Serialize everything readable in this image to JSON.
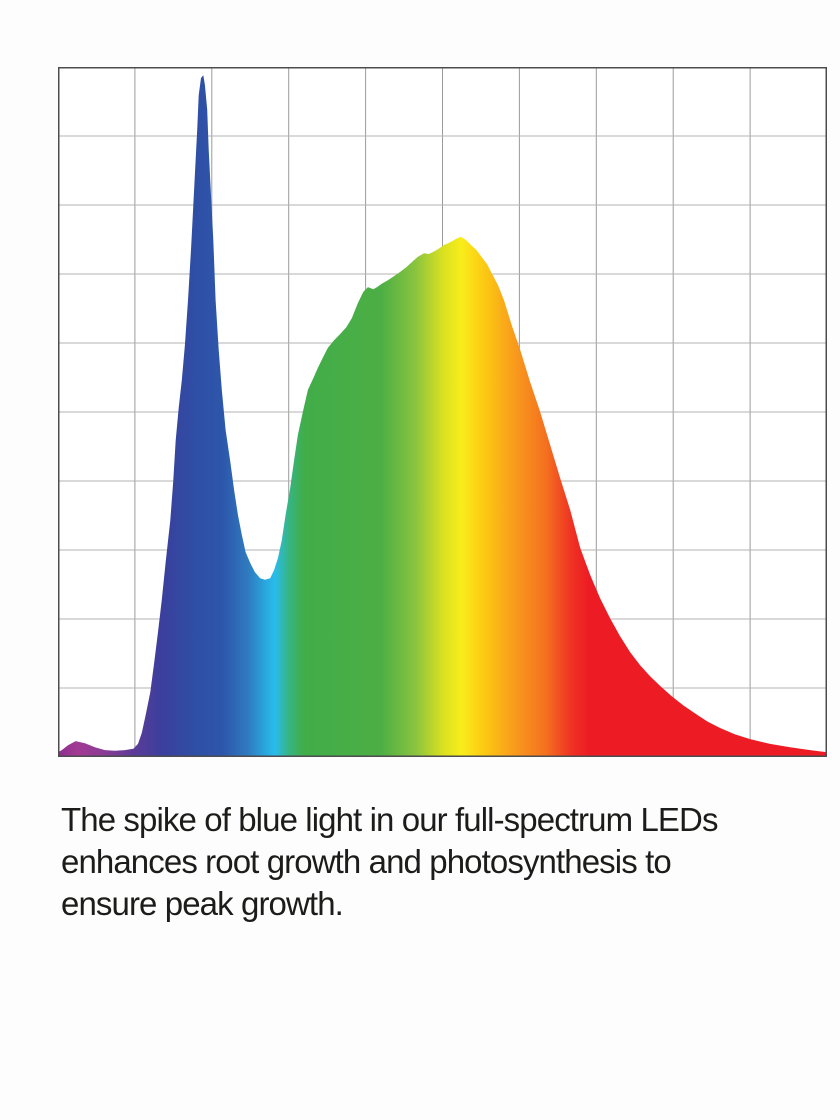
{
  "page": {
    "background": "#fdfdfd"
  },
  "caption": {
    "text": "The spike of blue light in our full-spectrum LEDs enhances root growth and photosynthesis to ensure peak growth.",
    "lines": [
      "The spike of blue light in our full-spectrum LEDs",
      "enhances root growth and photosynthesis to",
      "ensure peak growth."
    ],
    "color": "#1c1c1a"
  },
  "chart_data": {
    "type": "area",
    "title": "",
    "xlabel": "",
    "ylabel": "",
    "axes_labeled": false,
    "description": "Spectral power distribution of a full-spectrum grow LED: sharp royal-blue spike (~450 nm) reaching nearly full scale, valley in cyan, broad hump across green-yellow peaking in yellow (~75% of full scale), long red tail. Fill is a horizontal rainbow gradient from violet to red.",
    "grid": {
      "columns": 10,
      "rows": 10,
      "line_color_vertical": "#9b9b9b",
      "line_color_horizontal": "#b3b3b3",
      "border_color": "#4d4d4f",
      "plot_background": "#ffffff"
    },
    "peaks": [
      {
        "name": "blue-spike",
        "x_frac": 0.189,
        "intensity_frac": 0.988
      },
      {
        "name": "yellow-peak",
        "x_frac": 0.524,
        "intensity_frac": 0.754
      },
      {
        "name": "valley",
        "x_frac": 0.269,
        "intensity_frac": 0.257
      }
    ],
    "gradient_stops": [
      {
        "offset": 0.0,
        "color": "#8c2f8e"
      },
      {
        "offset": 0.025,
        "color": "#a23a93"
      },
      {
        "offset": 0.06,
        "color": "#8a3c95"
      },
      {
        "offset": 0.095,
        "color": "#5f3b97"
      },
      {
        "offset": 0.135,
        "color": "#3a3f9d"
      },
      {
        "offset": 0.18,
        "color": "#2e4fa5"
      },
      {
        "offset": 0.215,
        "color": "#2d57ab"
      },
      {
        "offset": 0.248,
        "color": "#2f7cc0"
      },
      {
        "offset": 0.27,
        "color": "#29a8de"
      },
      {
        "offset": 0.282,
        "color": "#29bcec"
      },
      {
        "offset": 0.3,
        "color": "#36b583"
      },
      {
        "offset": 0.32,
        "color": "#41ad49"
      },
      {
        "offset": 0.42,
        "color": "#4cae44"
      },
      {
        "offset": 0.465,
        "color": "#8ac43f"
      },
      {
        "offset": 0.5,
        "color": "#d9e021"
      },
      {
        "offset": 0.525,
        "color": "#f9ed1b"
      },
      {
        "offset": 0.555,
        "color": "#fcc813"
      },
      {
        "offset": 0.6,
        "color": "#f8941d"
      },
      {
        "offset": 0.635,
        "color": "#f4701f"
      },
      {
        "offset": 0.668,
        "color": "#ef3123"
      },
      {
        "offset": 0.69,
        "color": "#ed1c24"
      },
      {
        "offset": 1.0,
        "color": "#ed1c24"
      }
    ],
    "area_points": [
      [
        0.0,
        0.007
      ],
      [
        0.005,
        0.01
      ],
      [
        0.013,
        0.017
      ],
      [
        0.023,
        0.023
      ],
      [
        0.035,
        0.02
      ],
      [
        0.048,
        0.014
      ],
      [
        0.061,
        0.01
      ],
      [
        0.074,
        0.009
      ],
      [
        0.087,
        0.01
      ],
      [
        0.098,
        0.012
      ],
      [
        0.104,
        0.019
      ],
      [
        0.109,
        0.035
      ],
      [
        0.114,
        0.061
      ],
      [
        0.12,
        0.094
      ],
      [
        0.125,
        0.136
      ],
      [
        0.13,
        0.181
      ],
      [
        0.135,
        0.228
      ],
      [
        0.14,
        0.283
      ],
      [
        0.146,
        0.343
      ],
      [
        0.15,
        0.401
      ],
      [
        0.153,
        0.459
      ],
      [
        0.157,
        0.506
      ],
      [
        0.161,
        0.546
      ],
      [
        0.165,
        0.597
      ],
      [
        0.169,
        0.662
      ],
      [
        0.173,
        0.735
      ],
      [
        0.177,
        0.822
      ],
      [
        0.181,
        0.909
      ],
      [
        0.183,
        0.959
      ],
      [
        0.186,
        0.984
      ],
      [
        0.189,
        0.988
      ],
      [
        0.191,
        0.974
      ],
      [
        0.194,
        0.938
      ],
      [
        0.196,
        0.88
      ],
      [
        0.199,
        0.814
      ],
      [
        0.202,
        0.749
      ],
      [
        0.205,
        0.662
      ],
      [
        0.209,
        0.59
      ],
      [
        0.213,
        0.532
      ],
      [
        0.218,
        0.474
      ],
      [
        0.224,
        0.428
      ],
      [
        0.229,
        0.387
      ],
      [
        0.234,
        0.351
      ],
      [
        0.239,
        0.322
      ],
      [
        0.244,
        0.297
      ],
      [
        0.25,
        0.281
      ],
      [
        0.256,
        0.268
      ],
      [
        0.263,
        0.259
      ],
      [
        0.269,
        0.257
      ],
      [
        0.276,
        0.259
      ],
      [
        0.281,
        0.271
      ],
      [
        0.286,
        0.288
      ],
      [
        0.291,
        0.314
      ],
      [
        0.296,
        0.351
      ],
      [
        0.302,
        0.39
      ],
      [
        0.307,
        0.43
      ],
      [
        0.312,
        0.467
      ],
      [
        0.319,
        0.503
      ],
      [
        0.325,
        0.532
      ],
      [
        0.332,
        0.549
      ],
      [
        0.338,
        0.564
      ],
      [
        0.345,
        0.58
      ],
      [
        0.351,
        0.593
      ],
      [
        0.359,
        0.604
      ],
      [
        0.367,
        0.613
      ],
      [
        0.375,
        0.623
      ],
      [
        0.382,
        0.636
      ],
      [
        0.39,
        0.658
      ],
      [
        0.397,
        0.674
      ],
      [
        0.403,
        0.681
      ],
      [
        0.41,
        0.678
      ],
      [
        0.415,
        0.681
      ],
      [
        0.421,
        0.686
      ],
      [
        0.429,
        0.691
      ],
      [
        0.437,
        0.697
      ],
      [
        0.445,
        0.703
      ],
      [
        0.453,
        0.71
      ],
      [
        0.46,
        0.717
      ],
      [
        0.468,
        0.725
      ],
      [
        0.476,
        0.73
      ],
      [
        0.482,
        0.729
      ],
      [
        0.488,
        0.732
      ],
      [
        0.494,
        0.736
      ],
      [
        0.502,
        0.742
      ],
      [
        0.51,
        0.746
      ],
      [
        0.518,
        0.751
      ],
      [
        0.524,
        0.754
      ],
      [
        0.531,
        0.749
      ],
      [
        0.537,
        0.742
      ],
      [
        0.544,
        0.735
      ],
      [
        0.55,
        0.726
      ],
      [
        0.558,
        0.714
      ],
      [
        0.564,
        0.701
      ],
      [
        0.572,
        0.684
      ],
      [
        0.58,
        0.662
      ],
      [
        0.59,
        0.626
      ],
      [
        0.601,
        0.59
      ],
      [
        0.614,
        0.543
      ],
      [
        0.627,
        0.5
      ],
      [
        0.64,
        0.452
      ],
      [
        0.653,
        0.404
      ],
      [
        0.666,
        0.358
      ],
      [
        0.679,
        0.303
      ],
      [
        0.692,
        0.264
      ],
      [
        0.705,
        0.23
      ],
      [
        0.718,
        0.201
      ],
      [
        0.731,
        0.175
      ],
      [
        0.744,
        0.152
      ],
      [
        0.757,
        0.133
      ],
      [
        0.77,
        0.117
      ],
      [
        0.783,
        0.103
      ],
      [
        0.798,
        0.088
      ],
      [
        0.814,
        0.074
      ],
      [
        0.83,
        0.062
      ],
      [
        0.845,
        0.051
      ],
      [
        0.861,
        0.042
      ],
      [
        0.88,
        0.033
      ],
      [
        0.9,
        0.026
      ],
      [
        0.926,
        0.019
      ],
      [
        0.952,
        0.014
      ],
      [
        0.978,
        0.01
      ],
      [
        1.0,
        0.007
      ]
    ]
  }
}
